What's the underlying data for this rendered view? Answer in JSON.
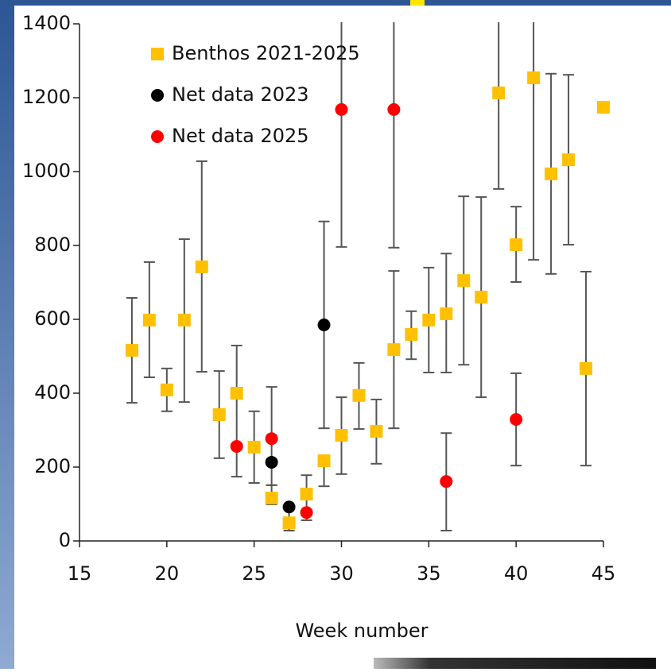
{
  "chart_data": {
    "type": "scatter",
    "x_label": "Week number",
    "xlim": [
      15,
      45
    ],
    "xticks": [
      15,
      20,
      25,
      30,
      35,
      40,
      45
    ],
    "ylim": [
      0,
      1400
    ],
    "yticks": [
      0,
      200,
      400,
      600,
      800,
      1000,
      1200,
      1400
    ],
    "grid": false,
    "legend": "upper left",
    "series": [
      {
        "name": "Benthos 2021-2025",
        "color": "#ffc000",
        "marker": "square",
        "x": [
          18,
          19,
          20,
          21,
          22,
          23,
          24,
          25,
          26,
          27,
          28,
          29,
          30,
          31,
          32,
          33,
          34,
          35,
          36,
          37,
          38,
          39,
          40,
          41,
          42,
          43,
          44,
          45
        ],
        "values": [
          516,
          598,
          409,
          598,
          742,
          342,
          400,
          254,
          116,
          49,
          127,
          217,
          286,
          394,
          297,
          518,
          559,
          598,
          615,
          705,
          660,
          1213,
          802,
          1254,
          994,
          1032,
          467,
          1174
        ],
        "lower": [
          374,
          443,
          351,
          376,
          458,
          224,
          174,
          157,
          99,
          28,
          56,
          148,
          181,
          303,
          209,
          305,
          492,
          456,
          456,
          477,
          389,
          953,
          701,
          761,
          723,
          802,
          204,
          null
        ],
        "upper": [
          658,
          755,
          467,
          817,
          1028,
          460,
          529,
          351,
          151,
          88,
          178,
          230,
          389,
          482,
          383,
          731,
          622,
          740,
          778,
          933,
          931,
          1450,
          905,
          1450,
          1265,
          1262,
          729,
          null
        ]
      },
      {
        "name": "Net data 2023",
        "color": "#000000",
        "marker": "circle",
        "x": [
          26,
          27,
          29
        ],
        "values": [
          213,
          92,
          585
        ],
        "lower": [
          null,
          null,
          305
        ],
        "upper": [
          null,
          null,
          865
        ]
      },
      {
        "name": "Net data 2025",
        "color": "#ff0000",
        "marker": "circle",
        "x": [
          24,
          26,
          28,
          30,
          33,
          36,
          40
        ],
        "values": [
          256,
          277,
          77,
          1168,
          1168,
          161,
          329
        ],
        "lower": [
          null,
          151,
          null,
          796,
          794,
          28,
          204
        ],
        "upper": [
          null,
          417,
          null,
          1450,
          1450,
          292,
          454
        ]
      }
    ]
  }
}
